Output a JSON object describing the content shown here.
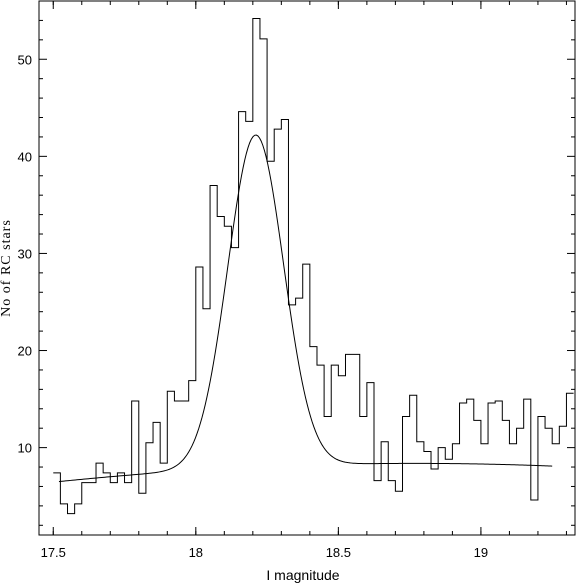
{
  "chart_data": {
    "type": "histogram",
    "xlabel": "I magnitude",
    "ylabel": "No of RC stars",
    "xlim": [
      17.45,
      19.33
    ],
    "ylim": [
      1,
      56
    ],
    "xticks": [
      17.5,
      18,
      18.5,
      19
    ],
    "xtick_labels": [
      "17.5",
      "18",
      "18.5",
      "19"
    ],
    "yticks": [
      10,
      20,
      30,
      40,
      50
    ],
    "ytick_labels": [
      "10",
      "20",
      "30",
      "40",
      "50"
    ],
    "grid": false,
    "histogram": {
      "bin_start": 17.5,
      "bin_width": 0.025,
      "counts": [
        7.4,
        4.2,
        3.2,
        4.2,
        6.4,
        6.4,
        8.4,
        7.4,
        6.4,
        7.4,
        6.4,
        14.8,
        5.3,
        10.5,
        12.6,
        8.4,
        15.8,
        14.8,
        14.8,
        16.9,
        28.6,
        24.3,
        37.0,
        33.8,
        32.8,
        30.6,
        44.6,
        43.6,
        54.2,
        52.1,
        39.5,
        42.8,
        43.8,
        24.7,
        25.4,
        28.9,
        20.4,
        18.5,
        13.2,
        18.5,
        17.4,
        19.6,
        19.6,
        13.2,
        16.7,
        6.6,
        10.6,
        6.6,
        5.5,
        13.2,
        15.4,
        10.6,
        9.6,
        7.8,
        10.0,
        8.8,
        10.4,
        14.6,
        15.0,
        12.8,
        10.4,
        14.6,
        14.8,
        12.8,
        10.4,
        12.0,
        15.0,
        4.6,
        13.2,
        12.0,
        10.4,
        12.2,
        15.6
      ]
    },
    "fit_curve": {
      "model": "gaussian_plus_quadratic",
      "x_range": [
        17.52,
        19.25
      ],
      "gaussian": {
        "amplitude": 34.2,
        "center": 18.21,
        "sigma": 0.098
      },
      "background": {
        "a": 6.5,
        "b": 3.0,
        "c": -1.2,
        "x0": 17.52
      }
    }
  }
}
